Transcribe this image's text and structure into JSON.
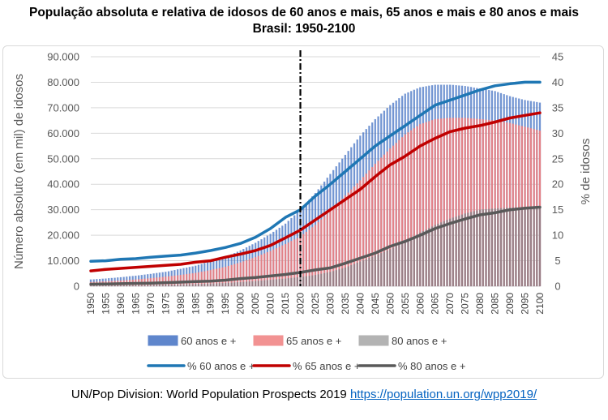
{
  "title": {
    "line1": "População absoluta e relativa de idosos de 60 anos e mais, 65 anos e mais e 80 anos e mais",
    "line2": "Brasil: 1950-2100"
  },
  "source": {
    "text": "UN/Pop Division: World Population Prospects 2019 ",
    "link": "https://population.un.org/wpp2019/"
  },
  "chart_data": {
    "type": "bar+line",
    "ylabel_left": "Número absoluto (em mil) de idosos",
    "ylabel_right": "% de idosos",
    "ylim_left": [
      0,
      90000
    ],
    "ylim_right": [
      0,
      45
    ],
    "yticks_left": [
      "0",
      "10.000",
      "20.000",
      "30.000",
      "40.000",
      "50.000",
      "60.000",
      "70.000",
      "80.000",
      "90.000"
    ],
    "yticks_right": [
      "0",
      "5",
      "10",
      "15",
      "20",
      "25",
      "30",
      "35",
      "40",
      "45"
    ],
    "xticks": [
      "1950",
      "1955",
      "1960",
      "1965",
      "1970",
      "1975",
      "1980",
      "1985",
      "1990",
      "1995",
      "2000",
      "2005",
      "2010",
      "2015",
      "2020",
      "2025",
      "2030",
      "2035",
      "2040",
      "2045",
      "2050",
      "2055",
      "2060",
      "2065",
      "2070",
      "2075",
      "2080",
      "2085",
      "2090",
      "2095",
      "2100"
    ],
    "marker_year": 2020,
    "years": [
      1950,
      1955,
      1960,
      1965,
      1970,
      1975,
      1980,
      1985,
      1990,
      1995,
      2000,
      2005,
      2010,
      2015,
      2020,
      2025,
      2030,
      2035,
      2040,
      2045,
      2050,
      2055,
      2060,
      2065,
      2070,
      2075,
      2080,
      2085,
      2090,
      2095,
      2100
    ],
    "bar_series": [
      {
        "name": "60 anos e +",
        "color": "#4472c4",
        "values": [
          2600,
          3000,
          3500,
          4100,
          4800,
          5600,
          6800,
          8000,
          9800,
          11500,
          14000,
          17000,
          20500,
          24500,
          30000,
          36500,
          44000,
          51500,
          59000,
          65500,
          71000,
          75500,
          78000,
          79000,
          79000,
          78500,
          77500,
          76500,
          74500,
          73000,
          72000
        ]
      },
      {
        "name": "65 anos e +",
        "color": "#f08080",
        "values": [
          1600,
          1900,
          2200,
          2600,
          3100,
          3700,
          4400,
          5200,
          6300,
          7600,
          9300,
          11400,
          13800,
          16500,
          19500,
          24000,
          29500,
          35500,
          41500,
          48000,
          54000,
          59500,
          63500,
          65500,
          66000,
          66000,
          65500,
          65000,
          64000,
          62500,
          61000
        ]
      },
      {
        "name": "80 anos e +",
        "color": "#a6a6a6",
        "values": [
          200,
          250,
          300,
          380,
          460,
          560,
          680,
          820,
          1000,
          1250,
          1600,
          2000,
          2500,
          3000,
          3600,
          4400,
          5600,
          7300,
          9700,
          12000,
          14500,
          17500,
          21000,
          24000,
          26500,
          28500,
          30000,
          30500,
          30800,
          31000,
          31200
        ]
      }
    ],
    "line_series": [
      {
        "name": "% 60 anos e +",
        "color": "#1f77b4",
        "values": [
          4.9,
          5.0,
          5.3,
          5.4,
          5.7,
          5.9,
          6.1,
          6.5,
          7.0,
          7.6,
          8.4,
          9.6,
          11.3,
          13.5,
          15.0,
          17.7,
          20.0,
          22.5,
          25.0,
          27.5,
          29.5,
          31.5,
          33.5,
          35.5,
          36.5,
          37.5,
          38.5,
          39.3,
          39.7,
          40.0,
          40.0
        ]
      },
      {
        "name": "% 65 anos e +",
        "color": "#c00000",
        "values": [
          3.0,
          3.3,
          3.5,
          3.7,
          3.9,
          4.1,
          4.3,
          4.7,
          5.0,
          5.7,
          6.3,
          7.0,
          8.0,
          9.5,
          11.0,
          13.0,
          15.0,
          17.0,
          19.0,
          21.5,
          23.8,
          25.5,
          27.5,
          29.0,
          30.3,
          31.0,
          31.5,
          32.2,
          33.0,
          33.5,
          34.0
        ]
      },
      {
        "name": "% 80 anos e +",
        "color": "#595959",
        "values": [
          0.4,
          0.45,
          0.5,
          0.55,
          0.6,
          0.7,
          0.8,
          0.9,
          1.0,
          1.2,
          1.5,
          1.7,
          2.0,
          2.3,
          2.7,
          3.2,
          3.6,
          4.5,
          5.5,
          6.5,
          7.8,
          8.8,
          10.0,
          11.3,
          12.3,
          13.2,
          14.0,
          14.4,
          15.0,
          15.3,
          15.5
        ]
      }
    ]
  }
}
